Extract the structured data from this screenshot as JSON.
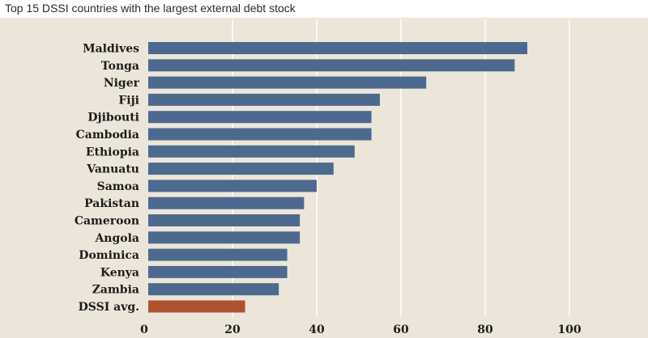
{
  "chart_data": {
    "type": "bar",
    "orientation": "horizontal",
    "title": "Top 15 DSSI countries with the largest external debt stock",
    "xlabel": "",
    "ylabel": "",
    "categories": [
      "Maldives",
      "Tonga",
      "Niger",
      "Fiji",
      "Djibouti",
      "Cambodia",
      "Ethiopia",
      "Vanuatu",
      "Samoa",
      "Pakistan",
      "Cameroon",
      "Angola",
      "Dominica",
      "Kenya",
      "Zambia",
      "DSSI avg."
    ],
    "values": [
      90,
      87,
      66,
      55,
      53,
      53,
      49,
      44,
      40,
      37,
      36,
      36,
      33,
      33,
      31,
      23
    ],
    "xlim": [
      0,
      115
    ],
    "xticks": [
      0,
      20,
      40,
      60,
      80,
      100
    ],
    "xtick_labels": [
      "0",
      "20",
      "40",
      "60",
      "80",
      "100"
    ],
    "grid": "vertical",
    "colors": {
      "bar": "#4d6a8e",
      "highlight": "#b0522e",
      "grid": "#ffffff",
      "background": "#ece6da"
    },
    "highlight_category": "DSSI avg."
  }
}
